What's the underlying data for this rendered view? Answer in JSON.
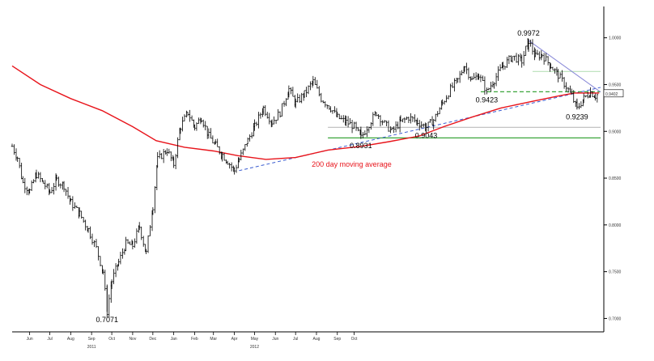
{
  "chart_data": {
    "type": "line",
    "style": "ohlc-bars",
    "x_ticks": [
      "Jun",
      "Jul",
      "Aug",
      "Sep",
      "Oct",
      "Nov",
      "Dec",
      "Jan",
      "Feb",
      "Mar",
      "Apr",
      "May",
      "Jun",
      "Jul",
      "Aug",
      "Sep",
      "Oct"
    ],
    "year_labels": [
      {
        "label": "2011",
        "at": "Sep"
      },
      {
        "label": "2012",
        "at": "May"
      }
    ],
    "y_ticks": [
      "1.0000",
      "0.9500",
      "0.9000",
      "0.8500",
      "0.8000",
      "0.7500",
      "0.7000"
    ],
    "ylim": [
      0.69,
      1.03
    ],
    "last_price_label": "0.9402",
    "price_series": [
      [
        "2010-05-20",
        0.884
      ],
      [
        "2010-05-28",
        0.872
      ],
      [
        "2010-06-05",
        0.845
      ],
      [
        "2010-06-15",
        0.836
      ],
      [
        "2010-06-25",
        0.854
      ],
      [
        "2010-07-05",
        0.845
      ],
      [
        "2010-07-15",
        0.835
      ],
      [
        "2010-07-25",
        0.848
      ],
      [
        "2010-08-05",
        0.842
      ],
      [
        "2010-08-15",
        0.824
      ],
      [
        "2010-08-28",
        0.812
      ],
      [
        "2010-09-10",
        0.795
      ],
      [
        "2010-09-22",
        0.775
      ],
      [
        "2010-10-02",
        0.75
      ],
      [
        "2010-10-08",
        0.7071
      ],
      [
        "2010-10-15",
        0.74
      ],
      [
        "2010-10-25",
        0.76
      ],
      [
        "2010-11-05",
        0.78
      ],
      [
        "2010-11-15",
        0.778
      ],
      [
        "2010-11-25",
        0.798
      ],
      [
        "2010-12-05",
        0.77
      ],
      [
        "2010-12-15",
        0.82
      ],
      [
        "2010-12-22",
        0.87
      ],
      [
        "2011-01-05",
        0.88
      ],
      [
        "2011-01-15",
        0.865
      ],
      [
        "2011-01-25",
        0.905
      ],
      [
        "2011-02-05",
        0.92
      ],
      [
        "2011-02-15",
        0.905
      ],
      [
        "2011-02-25",
        0.915
      ],
      [
        "2011-03-08",
        0.895
      ],
      [
        "2011-03-18",
        0.885
      ],
      [
        "2011-03-28",
        0.875
      ],
      [
        "2011-04-05",
        0.868
      ],
      [
        "2011-04-15",
        0.858
      ],
      [
        "2011-04-22",
        0.87
      ],
      [
        "2011-05-05",
        0.89
      ],
      [
        "2011-05-15",
        0.905
      ],
      [
        "2011-05-28",
        0.925
      ],
      [
        "2011-06-10",
        0.91
      ],
      [
        "2011-06-22",
        0.92
      ],
      [
        "2011-07-05",
        0.945
      ],
      [
        "2011-07-15",
        0.93
      ],
      [
        "2011-07-28",
        0.94
      ],
      [
        "2011-08-10",
        0.953
      ],
      [
        "2011-08-22",
        0.935
      ],
      [
        "2011-09-05",
        0.925
      ],
      [
        "2011-09-15",
        0.915
      ],
      [
        "2011-09-28",
        0.91
      ],
      [
        "2011-10-10",
        0.905
      ],
      [
        "2011-10-20",
        0.8931
      ],
      [
        "2011-11-01",
        0.908
      ],
      [
        "2011-11-12",
        0.92
      ],
      [
        "2011-11-24",
        0.908
      ],
      [
        "2011-12-05",
        0.9
      ],
      [
        "2011-12-18",
        0.91
      ],
      [
        "2011-12-30",
        0.915
      ],
      [
        "2012-01-12",
        0.91
      ],
      [
        "2012-01-25",
        0.9043
      ],
      [
        "2012-02-05",
        0.912
      ],
      [
        "2012-02-18",
        0.93
      ],
      [
        "2012-03-01",
        0.945
      ],
      [
        "2012-03-12",
        0.955
      ],
      [
        "2012-03-22",
        0.97
      ],
      [
        "2012-04-02",
        0.955
      ],
      [
        "2012-04-12",
        0.96
      ],
      [
        "2012-04-24",
        0.9423
      ],
      [
        "2012-05-05",
        0.955
      ],
      [
        "2012-05-18",
        0.97
      ],
      [
        "2012-06-01",
        0.98
      ],
      [
        "2012-06-15",
        0.975
      ],
      [
        "2012-06-25",
        0.9972
      ],
      [
        "2012-07-05",
        0.98
      ],
      [
        "2012-07-15",
        0.982
      ],
      [
        "2012-07-28",
        0.97
      ],
      [
        "2012-08-08",
        0.96
      ],
      [
        "2012-08-20",
        0.948
      ],
      [
        "2012-08-28",
        0.938
      ],
      [
        "2012-09-05",
        0.9239
      ],
      [
        "2012-09-15",
        0.935
      ],
      [
        "2012-09-25",
        0.942
      ],
      [
        "2012-10-02",
        0.938
      ],
      [
        "2012-10-08",
        0.9402
      ]
    ],
    "moving_average": {
      "label": "200 day moving average",
      "values": [
        [
          "2010-05-20",
          0.97
        ],
        [
          "2010-07-01",
          0.95
        ],
        [
          "2010-08-15",
          0.935
        ],
        [
          "2010-10-01",
          0.922
        ],
        [
          "2010-11-15",
          0.905
        ],
        [
          "2010-12-20",
          0.89
        ],
        [
          "2011-01-31",
          0.883
        ],
        [
          "2011-03-15",
          0.879
        ],
        [
          "2011-04-20",
          0.874
        ],
        [
          "2011-06-01",
          0.87
        ],
        [
          "2011-07-15",
          0.872
        ],
        [
          "2011-09-01",
          0.88
        ],
        [
          "2011-10-20",
          0.884
        ],
        [
          "2011-12-01",
          0.889
        ],
        [
          "2012-01-15",
          0.895
        ],
        [
          "2012-02-20",
          0.905
        ],
        [
          "2012-04-01",
          0.915
        ],
        [
          "2012-05-15",
          0.925
        ],
        [
          "2012-06-30",
          0.932
        ],
        [
          "2012-08-10",
          0.938
        ],
        [
          "2012-09-01",
          0.941
        ],
        [
          "2012-10-08",
          0.941
        ]
      ]
    },
    "annotations": [
      {
        "text": "0.7071",
        "date": "2010-10-08",
        "value": 0.7071,
        "pos": "below"
      },
      {
        "text": "0.8931",
        "date": "2011-10-20",
        "value": 0.8931,
        "pos": "below"
      },
      {
        "text": "0.9043",
        "date": "2012-01-25",
        "value": 0.9043,
        "pos": "below"
      },
      {
        "text": "0.9423",
        "date": "2012-04-24",
        "value": 0.9423,
        "pos": "below"
      },
      {
        "text": "0.9972",
        "date": "2012-06-25",
        "value": 0.9972,
        "pos": "above"
      },
      {
        "text": "0.9239",
        "date": "2012-09-05",
        "value": 0.9239,
        "pos": "below"
      }
    ],
    "horizontal_lines": [
      {
        "value": 0.893,
        "from": "2011-09-01",
        "color": "#3aa53a",
        "style": "solid"
      },
      {
        "value": 0.9423,
        "from": "2012-04-15",
        "color": "#3aa53a",
        "style": "dashed"
      },
      {
        "value": 0.9043,
        "from": "2011-09-01",
        "color": "#bbbbbb",
        "style": "solid"
      },
      {
        "value": 0.964,
        "from": "2012-07-01",
        "color": "#b8e0b8",
        "style": "solid"
      }
    ],
    "trendlines": [
      {
        "from": [
          "2011-04-22",
          0.858
        ],
        "to": [
          "2012-10-10",
          0.947
        ],
        "color": "#3a5bd0",
        "style": "dashed"
      },
      {
        "from": [
          "2012-06-25",
          0.9972
        ],
        "to": [
          "2012-10-10",
          0.942
        ],
        "color": "#8a8ad8",
        "style": "solid"
      }
    ],
    "colors": {
      "price": "#000000",
      "moving_average": "#e8141b"
    },
    "grid": false,
    "legend": "none"
  }
}
